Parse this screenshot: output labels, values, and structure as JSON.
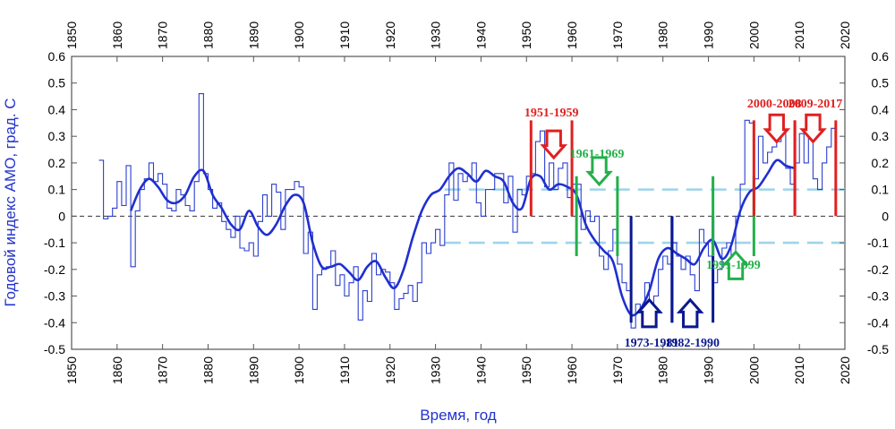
{
  "chart_data": {
    "type": "line",
    "xlabel": "Время, год",
    "ylabel": "Годовой индекс АМО, град. С",
    "xlim": [
      1850,
      2020
    ],
    "ylim": [
      -0.5,
      0.6
    ],
    "x_ticks": [
      1850,
      1860,
      1870,
      1880,
      1890,
      1900,
      1910,
      1920,
      1930,
      1940,
      1950,
      1960,
      1970,
      1980,
      1990,
      2000,
      2010,
      2020
    ],
    "y_ticks": [
      -0.5,
      -0.4,
      -0.3,
      -0.2,
      -0.1,
      0,
      0.1,
      0.2,
      0.3,
      0.4,
      0.5,
      0.6
    ],
    "y_tick_labels": [
      "-0.5",
      "-0.4",
      "-0.3",
      "-0.2",
      "-0.1",
      "0",
      "0.1",
      "0.2",
      "0.3",
      "0.4",
      "0.5",
      "0.6"
    ],
    "series": [
      {
        "style": "step",
        "color": "#2b3fcf",
        "x": [
          1856,
          1857,
          1858,
          1859,
          1860,
          1861,
          1862,
          1863,
          1864,
          1865,
          1866,
          1867,
          1868,
          1869,
          1870,
          1871,
          1872,
          1873,
          1874,
          1875,
          1876,
          1877,
          1878,
          1879,
          1880,
          1881,
          1882,
          1883,
          1884,
          1885,
          1886,
          1887,
          1888,
          1889,
          1890,
          1891,
          1892,
          1893,
          1894,
          1895,
          1896,
          1897,
          1898,
          1899,
          1900,
          1901,
          1902,
          1903,
          1904,
          1905,
          1906,
          1907,
          1908,
          1909,
          1910,
          1911,
          1912,
          1913,
          1914,
          1915,
          1916,
          1917,
          1918,
          1919,
          1920,
          1921,
          1922,
          1923,
          1924,
          1925,
          1926,
          1927,
          1928,
          1929,
          1930,
          1931,
          1932,
          1933,
          1934,
          1935,
          1936,
          1937,
          1938,
          1939,
          1940,
          1941,
          1942,
          1943,
          1944,
          1945,
          1946,
          1947,
          1948,
          1949,
          1950,
          1951,
          1952,
          1953,
          1954,
          1955,
          1956,
          1957,
          1958,
          1959,
          1960,
          1961,
          1962,
          1963,
          1964,
          1965,
          1966,
          1967,
          1968,
          1969,
          1970,
          1971,
          1972,
          1973,
          1974,
          1975,
          1976,
          1977,
          1978,
          1979,
          1980,
          1981,
          1982,
          1983,
          1984,
          1985,
          1986,
          1987,
          1988,
          1989,
          1990,
          1991,
          1992,
          1993,
          1994,
          1995,
          1996,
          1997,
          1998,
          1999,
          2000,
          2001,
          2002,
          2003,
          2004,
          2005,
          2006,
          2007,
          2008,
          2009,
          2010,
          2011,
          2012,
          2013,
          2014,
          2015,
          2016,
          2017
        ],
        "values": [
          0.21,
          -0.01,
          0.0,
          0.03,
          0.13,
          0.04,
          0.19,
          -0.19,
          0.02,
          0.1,
          0.14,
          0.2,
          0.13,
          0.16,
          0.12,
          0.03,
          0.02,
          0.1,
          0.08,
          0.04,
          0.02,
          0.13,
          0.46,
          0.16,
          0.1,
          0.03,
          0.05,
          -0.02,
          -0.05,
          -0.08,
          0.0,
          -0.12,
          -0.13,
          -0.1,
          -0.15,
          -0.02,
          0.08,
          0.0,
          0.12,
          0.09,
          -0.05,
          0.1,
          0.1,
          0.13,
          0.11,
          -0.14,
          -0.06,
          -0.35,
          -0.22,
          -0.2,
          -0.19,
          -0.13,
          -0.26,
          -0.22,
          -0.3,
          -0.25,
          -0.19,
          -0.39,
          -0.28,
          -0.32,
          -0.14,
          -0.22,
          -0.2,
          -0.21,
          -0.25,
          -0.35,
          -0.31,
          -0.29,
          -0.26,
          -0.32,
          -0.25,
          -0.1,
          -0.14,
          -0.1,
          -0.05,
          -0.11,
          0.08,
          0.2,
          0.06,
          0.16,
          0.13,
          0.15,
          0.2,
          0.05,
          0.0,
          0.1,
          0.1,
          0.16,
          0.16,
          0.05,
          0.15,
          -0.06,
          0.1,
          0.08,
          0.15,
          0.16,
          0.28,
          0.32,
          0.11,
          0.2,
          0.1,
          0.18,
          0.2,
          0.07,
          0.12,
          0.12,
          -0.05,
          0.02,
          -0.02,
          0.0,
          -0.15,
          -0.2,
          -0.13,
          -0.05,
          -0.18,
          -0.25,
          -0.28,
          -0.42,
          -0.33,
          -0.35,
          -0.25,
          -0.38,
          -0.3,
          -0.2,
          -0.15,
          -0.18,
          -0.1,
          -0.15,
          -0.2,
          -0.15,
          -0.22,
          -0.28,
          -0.05,
          -0.1,
          -0.15,
          -0.25,
          -0.2,
          -0.12,
          -0.1,
          -0.22,
          0.0,
          0.12,
          0.36,
          0.35,
          0.14,
          0.3,
          0.2,
          0.24,
          0.26,
          0.28,
          0.31,
          0.18,
          0.12,
          0.2,
          0.31,
          0.2,
          0.35,
          0.14,
          0.1,
          0.2,
          0.26,
          0.33
        ]
      },
      {
        "style": "smooth",
        "color": "#1f2fd0",
        "x": [
          1863,
          1865,
          1867,
          1869,
          1871,
          1873,
          1875,
          1877,
          1879,
          1881,
          1883,
          1885,
          1887,
          1889,
          1891,
          1893,
          1895,
          1897,
          1899,
          1901,
          1903,
          1905,
          1907,
          1909,
          1911,
          1913,
          1915,
          1917,
          1919,
          1921,
          1923,
          1925,
          1927,
          1929,
          1931,
          1933,
          1935,
          1937,
          1939,
          1941,
          1943,
          1945,
          1947,
          1949,
          1951,
          1953,
          1955,
          1957,
          1959,
          1961,
          1963,
          1965,
          1967,
          1969,
          1971,
          1973,
          1975,
          1977,
          1979,
          1981,
          1983,
          1985,
          1987,
          1989,
          1991,
          1993,
          1995,
          1997,
          1999,
          2001,
          2003,
          2005,
          2007,
          2009
        ],
        "values": [
          0.02,
          0.1,
          0.14,
          0.11,
          0.06,
          0.05,
          0.08,
          0.15,
          0.17,
          0.08,
          0.03,
          -0.03,
          -0.05,
          0.02,
          -0.04,
          -0.07,
          -0.03,
          0.04,
          0.08,
          0.05,
          -0.1,
          -0.19,
          -0.19,
          -0.18,
          -0.21,
          -0.24,
          -0.19,
          -0.17,
          -0.23,
          -0.27,
          -0.2,
          -0.08,
          0.02,
          0.08,
          0.1,
          0.15,
          0.18,
          0.16,
          0.13,
          0.17,
          0.15,
          0.13,
          0.05,
          0.03,
          0.14,
          0.15,
          0.1,
          0.12,
          0.11,
          0.08,
          -0.03,
          -0.09,
          -0.13,
          -0.17,
          -0.3,
          -0.37,
          -0.35,
          -0.28,
          -0.16,
          -0.12,
          -0.14,
          -0.16,
          -0.18,
          -0.12,
          -0.09,
          -0.16,
          -0.11,
          0.02,
          0.09,
          0.11,
          0.16,
          0.21,
          0.19,
          0.18
        ]
      }
    ],
    "reference_lines": [
      {
        "y": 0,
        "style": "dashed",
        "color": "#333333"
      },
      {
        "y": 0.1,
        "x_from": 1932,
        "x_to": 2020,
        "style": "dashed",
        "color": "#9ed4ea"
      },
      {
        "y": -0.1,
        "x_from": 1932,
        "x_to": 2020,
        "style": "dashed",
        "color": "#9ed4ea"
      }
    ],
    "periods": [
      {
        "label": "1951-1959",
        "start": 1951,
        "end": 1960,
        "color": "#e02020",
        "arrow": "down"
      },
      {
        "label": "1961-1969",
        "start": 1961,
        "end": 1970,
        "color": "#22b04a",
        "arrow": "down"
      },
      {
        "label": "1973-1981",
        "start": 1973,
        "end": 1982,
        "color": "#0a1890",
        "arrow": "up"
      },
      {
        "label": "1982-1990",
        "start": 1982,
        "end": 1991,
        "color": "#0a1890",
        "arrow": "up"
      },
      {
        "label": "1991-1999",
        "start": 1991,
        "end": 2000,
        "color": "#22b04a",
        "arrow": "up"
      },
      {
        "label": "2000-2008",
        "start": 2000,
        "end": 2009,
        "color": "#e02020",
        "arrow": "down"
      },
      {
        "label": "2009-2017",
        "start": 2009,
        "end": 2018,
        "color": "#e02020",
        "arrow": "down"
      }
    ]
  }
}
